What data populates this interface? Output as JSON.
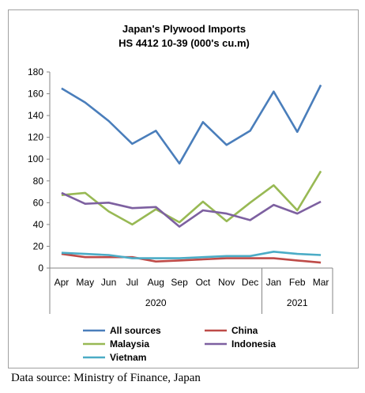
{
  "chart_data": {
    "type": "line",
    "title": "Japan's Plywood Imports",
    "subtitle": "HS 4412 10-39 (000's cu.m)",
    "categories": [
      "Apr",
      "May",
      "Jun",
      "Jul",
      "Aug",
      "Sep",
      "Oct",
      "Nov",
      "Dec",
      "Jan",
      "Feb",
      "Mar"
    ],
    "year_groups": [
      {
        "label": "2020",
        "count": 9
      },
      {
        "label": "2021",
        "count": 3
      }
    ],
    "ylim": [
      0,
      180
    ],
    "yticks": [
      0,
      20,
      40,
      60,
      80,
      100,
      120,
      140,
      160,
      180
    ],
    "grid": false,
    "legend_position": "bottom",
    "series": [
      {
        "name": "All sources",
        "color": "#4a7ebb",
        "values": [
          165,
          152,
          135,
          114,
          126,
          96,
          134,
          113,
          126,
          162,
          125,
          168
        ]
      },
      {
        "name": "China",
        "color": "#be4b48",
        "values": [
          13,
          10,
          10,
          10,
          6,
          7,
          8,
          9,
          9,
          9,
          7,
          5
        ]
      },
      {
        "name": "Malaysia",
        "color": "#98b954",
        "values": [
          67,
          69,
          52,
          40,
          54,
          42,
          61,
          43,
          60,
          76,
          53,
          89
        ]
      },
      {
        "name": "Indonesia",
        "color": "#7d60a0",
        "values": [
          69,
          59,
          60,
          55,
          56,
          38,
          53,
          50,
          44,
          58,
          50,
          61
        ]
      },
      {
        "name": "Vietnam",
        "color": "#4bacc6",
        "values": [
          14,
          13,
          12,
          9,
          9,
          9,
          10,
          11,
          11,
          15,
          13,
          12
        ]
      }
    ]
  },
  "source_note": "Data source: Ministry of Finance, Japan"
}
